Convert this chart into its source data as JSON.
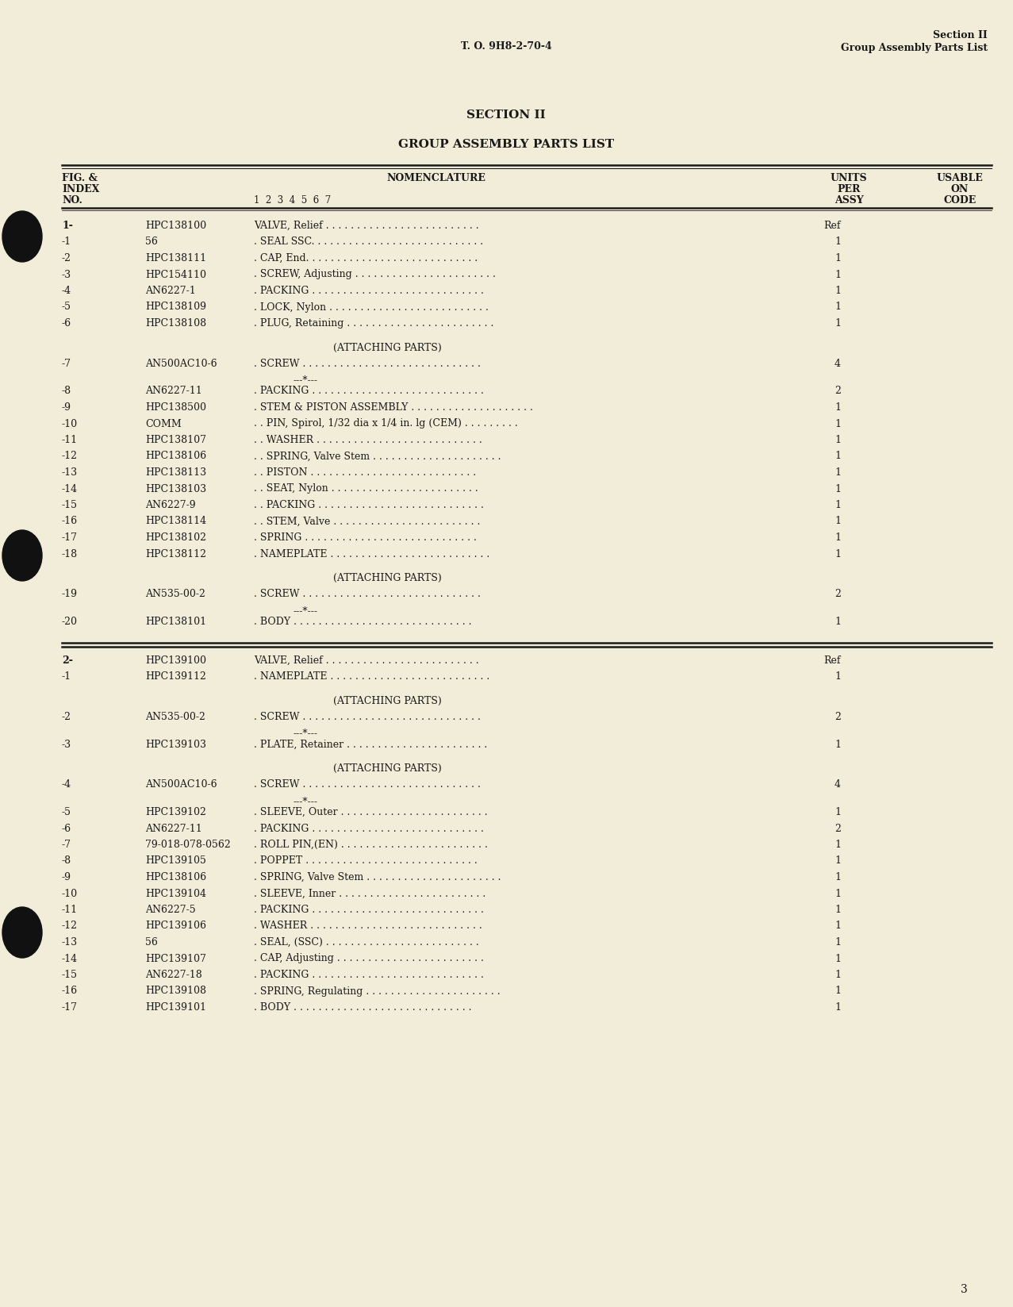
{
  "bg_color": "#f2edd8",
  "page_color": "#f2edd8",
  "header_left": "T. O. 9H8-2-70-4",
  "header_right_line1": "Section II",
  "header_right_line2": "Group Assembly Parts List",
  "section_title": "SECTION II",
  "section_subtitle": "GROUP ASSEMBLY PARTS LIST",
  "parts_group1": [
    {
      "index": "1-",
      "part": "HPC138100",
      "desc": "VALVE, Relief . . . . . . . . . . . . . . . . . . . . . . . . .",
      "qty": "Ref",
      "extra_before": 0
    },
    {
      "index": "-1",
      "part": "56",
      "desc": ". SEAL SSC. . . . . . . . . . . . . . . . . . . . . . . . . . . .",
      "qty": "1",
      "extra_before": 0
    },
    {
      "index": "-2",
      "part": "HPC138111",
      "desc": ". CAP, End. . . . . . . . . . . . . . . . . . . . . . . . . . . .",
      "qty": "1",
      "extra_before": 0
    },
    {
      "index": "-3",
      "part": "HPC154110",
      "desc": ". SCREW, Adjusting . . . . . . . . . . . . . . . . . . . . . . .",
      "qty": "1",
      "extra_before": 0
    },
    {
      "index": "-4",
      "part": "AN6227-1",
      "desc": ". PACKING . . . . . . . . . . . . . . . . . . . . . . . . . . . .",
      "qty": "1",
      "extra_before": 0
    },
    {
      "index": "-5",
      "part": "HPC138109",
      "desc": ". LOCK, Nylon . . . . . . . . . . . . . . . . . . . . . . . . . .",
      "qty": "1",
      "extra_before": 0
    },
    {
      "index": "-6",
      "part": "HPC138108",
      "desc": ". PLUG, Retaining . . . . . . . . . . . . . . . . . . . . . . . .",
      "qty": "1",
      "extra_before": 0
    },
    {
      "index": "",
      "part": "",
      "desc": "(ATTACHING PARTS)",
      "qty": "",
      "extra_before": 1,
      "special": "attaching"
    },
    {
      "index": "-7",
      "part": "AN500AC10-6",
      "desc": ". SCREW . . . . . . . . . . . . . . . . . . . . . . . . . . . . .",
      "qty": "4",
      "extra_before": 0
    },
    {
      "index": "",
      "part": "",
      "desc": "---*---",
      "qty": "",
      "extra_before": 0,
      "special": "separator"
    },
    {
      "index": "-8",
      "part": "AN6227-11",
      "desc": ". PACKING . . . . . . . . . . . . . . . . . . . . . . . . . . . .",
      "qty": "2",
      "extra_before": 0
    },
    {
      "index": "-9",
      "part": "HPC138500",
      "desc": ". STEM & PISTON ASSEMBLY . . . . . . . . . . . . . . . . . . . .",
      "qty": "1",
      "extra_before": 0
    },
    {
      "index": "-10",
      "part": "COMM",
      "desc": ". . PIN, Spirol, 1/32 dia x 1/4 in. lg (CEM) . . . . . . . . .",
      "qty": "1",
      "extra_before": 0
    },
    {
      "index": "-11",
      "part": "HPC138107",
      "desc": ". . WASHER . . . . . . . . . . . . . . . . . . . . . . . . . . .",
      "qty": "1",
      "extra_before": 0
    },
    {
      "index": "-12",
      "part": "HPC138106",
      "desc": ". . SPRING, Valve Stem . . . . . . . . . . . . . . . . . . . . .",
      "qty": "1",
      "extra_before": 0
    },
    {
      "index": "-13",
      "part": "HPC138113",
      "desc": ". . PISTON . . . . . . . . . . . . . . . . . . . . . . . . . . .",
      "qty": "1",
      "extra_before": 0
    },
    {
      "index": "-14",
      "part": "HPC138103",
      "desc": ". . SEAT, Nylon . . . . . . . . . . . . . . . . . . . . . . . .",
      "qty": "1",
      "extra_before": 0
    },
    {
      "index": "-15",
      "part": "AN6227-9",
      "desc": ". . PACKING . . . . . . . . . . . . . . . . . . . . . . . . . . .",
      "qty": "1",
      "extra_before": 0
    },
    {
      "index": "-16",
      "part": "HPC138114",
      "desc": ". . STEM, Valve . . . . . . . . . . . . . . . . . . . . . . . .",
      "qty": "1",
      "extra_before": 0
    },
    {
      "index": "-17",
      "part": "HPC138102",
      "desc": ". SPRING . . . . . . . . . . . . . . . . . . . . . . . . . . . .",
      "qty": "1",
      "extra_before": 0
    },
    {
      "index": "-18",
      "part": "HPC138112",
      "desc": ". NAMEPLATE . . . . . . . . . . . . . . . . . . . . . . . . . .",
      "qty": "1",
      "extra_before": 0
    },
    {
      "index": "",
      "part": "",
      "desc": "(ATTACHING PARTS)",
      "qty": "",
      "extra_before": 1,
      "special": "attaching"
    },
    {
      "index": "-19",
      "part": "AN535-00-2",
      "desc": ". SCREW . . . . . . . . . . . . . . . . . . . . . . . . . . . . .",
      "qty": "2",
      "extra_before": 0
    },
    {
      "index": "",
      "part": "",
      "desc": "---*---",
      "qty": "",
      "extra_before": 0,
      "special": "separator"
    },
    {
      "index": "-20",
      "part": "HPC138101",
      "desc": ". BODY . . . . . . . . . . . . . . . . . . . . . . . . . . . . .",
      "qty": "1",
      "extra_before": 0
    }
  ],
  "parts_group2": [
    {
      "index": "2-",
      "part": "HPC139100",
      "desc": "VALVE, Relief . . . . . . . . . . . . . . . . . . . . . . . . .",
      "qty": "Ref",
      "extra_before": 0
    },
    {
      "index": "-1",
      "part": "HPC139112",
      "desc": ". NAMEPLATE . . . . . . . . . . . . . . . . . . . . . . . . . .",
      "qty": "1",
      "extra_before": 0
    },
    {
      "index": "",
      "part": "",
      "desc": "(ATTACHING PARTS)",
      "qty": "",
      "extra_before": 1,
      "special": "attaching"
    },
    {
      "index": "-2",
      "part": "AN535-00-2",
      "desc": ". SCREW . . . . . . . . . . . . . . . . . . . . . . . . . . . . .",
      "qty": "2",
      "extra_before": 0
    },
    {
      "index": "",
      "part": "",
      "desc": "---*---",
      "qty": "",
      "extra_before": 0,
      "special": "separator"
    },
    {
      "index": "-3",
      "part": "HPC139103",
      "desc": ". PLATE, Retainer . . . . . . . . . . . . . . . . . . . . . . .",
      "qty": "1",
      "extra_before": 0
    },
    {
      "index": "",
      "part": "",
      "desc": "(ATTACHING PARTS)",
      "qty": "",
      "extra_before": 1,
      "special": "attaching"
    },
    {
      "index": "-4",
      "part": "AN500AC10-6",
      "desc": ". SCREW . . . . . . . . . . . . . . . . . . . . . . . . . . . . .",
      "qty": "4",
      "extra_before": 0
    },
    {
      "index": "",
      "part": "",
      "desc": "---*---",
      "qty": "",
      "extra_before": 0,
      "special": "separator"
    },
    {
      "index": "-5",
      "part": "HPC139102",
      "desc": ". SLEEVE, Outer . . . . . . . . . . . . . . . . . . . . . . . .",
      "qty": "1",
      "extra_before": 0
    },
    {
      "index": "-6",
      "part": "AN6227-11",
      "desc": ". PACKING . . . . . . . . . . . . . . . . . . . . . . . . . . . .",
      "qty": "2",
      "extra_before": 0
    },
    {
      "index": "-7",
      "part": "79-018-078-0562",
      "desc": ". ROLL PIN,(EN) . . . . . . . . . . . . . . . . . . . . . . . .",
      "qty": "1",
      "extra_before": 0
    },
    {
      "index": "-8",
      "part": "HPC139105",
      "desc": ". POPPET . . . . . . . . . . . . . . . . . . . . . . . . . . . .",
      "qty": "1",
      "extra_before": 0
    },
    {
      "index": "-9",
      "part": "HPC138106",
      "desc": ". SPRING, Valve Stem . . . . . . . . . . . . . . . . . . . . . .",
      "qty": "1",
      "extra_before": 0
    },
    {
      "index": "-10",
      "part": "HPC139104",
      "desc": ". SLEEVE, Inner . . . . . . . . . . . . . . . . . . . . . . . .",
      "qty": "1",
      "extra_before": 0
    },
    {
      "index": "-11",
      "part": "AN6227-5",
      "desc": ". PACKING . . . . . . . . . . . . . . . . . . . . . . . . . . . .",
      "qty": "1",
      "extra_before": 0
    },
    {
      "index": "-12",
      "part": "HPC139106",
      "desc": ". WASHER . . . . . . . . . . . . . . . . . . . . . . . . . . . .",
      "qty": "1",
      "extra_before": 0
    },
    {
      "index": "-13",
      "part": "56",
      "desc": ". SEAL, (SSC) . . . . . . . . . . . . . . . . . . . . . . . . .",
      "qty": "1",
      "extra_before": 0
    },
    {
      "index": "-14",
      "part": "HPC139107",
      "desc": ". CAP, Adjusting . . . . . . . . . . . . . . . . . . . . . . . .",
      "qty": "1",
      "extra_before": 0
    },
    {
      "index": "-15",
      "part": "AN6227-18",
      "desc": ". PACKING . . . . . . . . . . . . . . . . . . . . . . . . . . . .",
      "qty": "1",
      "extra_before": 0
    },
    {
      "index": "-16",
      "part": "HPC139108",
      "desc": ". SPRING, Regulating . . . . . . . . . . . . . . . . . . . . . .",
      "qty": "1",
      "extra_before": 0
    },
    {
      "index": "-17",
      "part": "HPC139101",
      "desc": ". BODY . . . . . . . . . . . . . . . . . . . . . . . . . . . . .",
      "qty": "1",
      "extra_before": 0
    }
  ],
  "page_number": "3",
  "text_color": "#1a1a1a"
}
